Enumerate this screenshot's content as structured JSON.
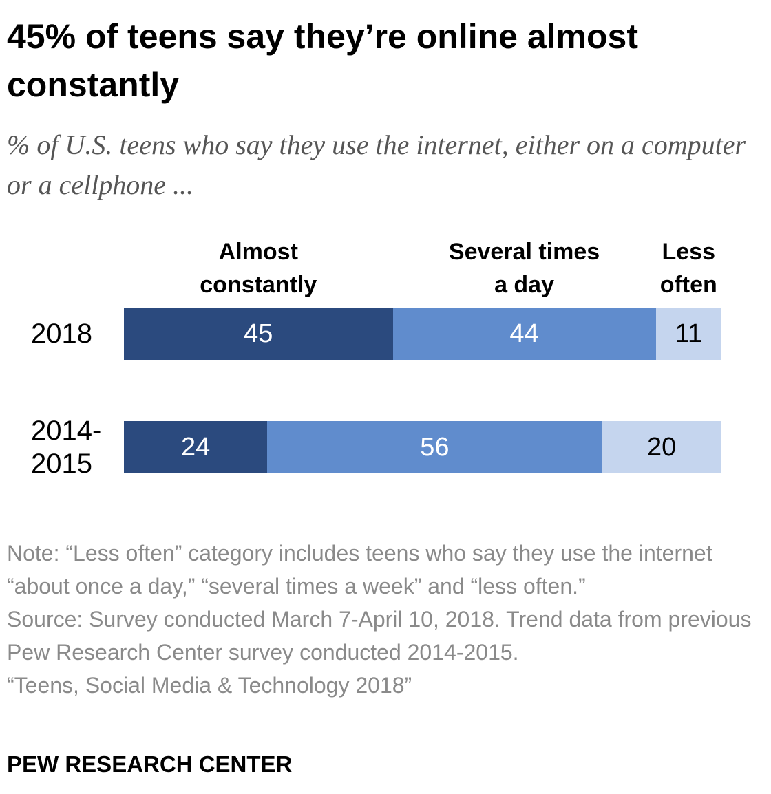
{
  "chart_data": {
    "type": "stacked-bar",
    "title": "45% of teens say they’re online almost constantly",
    "subtitle": "% of U.S. teens who say they use the internet, either on a computer or a cellphone ...",
    "categories": [
      "2018",
      "2014-2015"
    ],
    "series": [
      {
        "name": "Almost constantly",
        "color": "#2b4a7e",
        "values": [
          45,
          24
        ]
      },
      {
        "name": "Several times a day",
        "color": "#608ccd",
        "values": [
          44,
          56
        ]
      },
      {
        "name": "Less often",
        "color": "#c5d5ee",
        "values": [
          11,
          20
        ]
      }
    ],
    "xlim": [
      0,
      100
    ],
    "note": "Note: “Less often” category includes teens who say they use the internet “about once a day,” “several times a week” and “less often.”",
    "source": "Source: Survey conducted March 7-April 10, 2018. Trend data from previous Pew Research Center survey conducted 2014-2015.",
    "report": "“Teens, Social Media & Technology 2018”",
    "footer": "PEW RESEARCH CENTER"
  }
}
